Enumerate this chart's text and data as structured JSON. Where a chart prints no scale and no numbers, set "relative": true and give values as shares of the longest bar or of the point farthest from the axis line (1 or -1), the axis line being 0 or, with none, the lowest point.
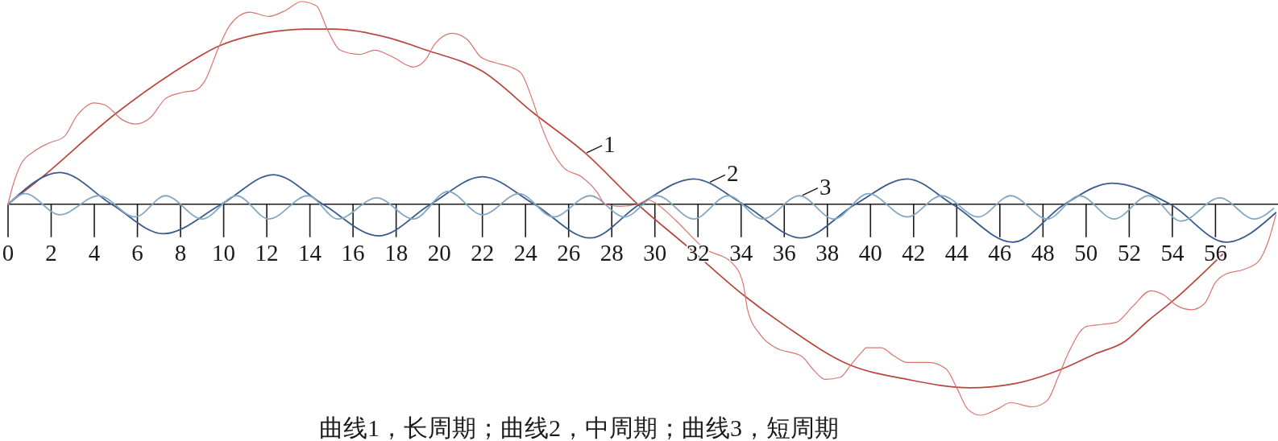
{
  "chart_data": {
    "type": "line",
    "relative": true,
    "line_style": "solid",
    "xlim": [
      0,
      58.9
    ],
    "xticks": [
      0,
      2,
      4,
      6,
      8,
      10,
      12,
      14,
      16,
      18,
      20,
      22,
      24,
      26,
      28,
      30,
      32,
      34,
      36,
      38,
      40,
      42,
      44,
      46,
      48,
      50,
      52,
      54,
      56
    ],
    "annotations": [
      "曲线1，长周期；曲线2，中周期；曲线3，短周期"
    ],
    "series": [
      {
        "name": "1",
        "color": "#b8473f",
        "x": [
          0,
          1.6,
          5.0,
          7.6,
          9.8,
          12.5,
          13.8,
          15.1,
          17.6,
          19.4,
          22.0,
          24.4,
          26.8,
          29.2,
          31.5,
          34.1,
          36.1,
          39.0,
          41.7,
          44.6,
          46.7,
          48.9,
          50.4,
          51.8,
          52.9,
          54.0,
          56.4
        ],
        "values": [
          0,
          0.13,
          0.43,
          0.62,
          0.75,
          0.82,
          0.83,
          0.83,
          0.79,
          0.73,
          0.63,
          0.43,
          0.24,
          0.0,
          -0.2,
          -0.43,
          -0.58,
          -0.76,
          -0.83,
          -0.87,
          -0.85,
          -0.78,
          -0.71,
          -0.65,
          -0.55,
          -0.46,
          -0.23
        ]
      },
      {
        "name": "2",
        "color": "#3a5b8d",
        "x": [
          0,
          2.4,
          4.8,
          7.2,
          9.9,
          12.3,
          14.6,
          17.2,
          19.6,
          22.0,
          24.4,
          27.0,
          29.3,
          31.8,
          34.1,
          36.8,
          39.3,
          41.7,
          43.8,
          46.6,
          49.0,
          51.2,
          53.9,
          56.5,
          58.8
        ],
        "values": [
          0,
          0.15,
          0,
          -0.14,
          0,
          0.14,
          0,
          -0.15,
          0,
          0.13,
          0,
          -0.16,
          0,
          0.12,
          0,
          -0.16,
          0,
          0.12,
          0,
          -0.18,
          0,
          0.1,
          0,
          -0.18,
          -0.04
        ]
      },
      {
        "name": "3",
        "color": "#84a8c3",
        "x": [
          0,
          0.8,
          2.4,
          4.2,
          5.9,
          7.3,
          9.0,
          10.6,
          12.1,
          13.9,
          15.3,
          17.1,
          18.8,
          20.4,
          22.0,
          23.7,
          25.3,
          27.0,
          28.6,
          30.1,
          31.8,
          33.4,
          35.0,
          36.7,
          38.3,
          39.9,
          41.7,
          43.3,
          45.0,
          46.5,
          48.2,
          49.7,
          51.3,
          52.9,
          54.4,
          56.2,
          57.8,
          58.7
        ],
        "values": [
          0,
          0.05,
          -0.05,
          0.04,
          -0.06,
          0.04,
          -0.07,
          0.04,
          -0.07,
          0.04,
          -0.07,
          0.03,
          -0.07,
          0.06,
          -0.05,
          0.05,
          -0.06,
          0.04,
          -0.06,
          0.04,
          -0.07,
          0.04,
          -0.07,
          0.04,
          -0.07,
          0.05,
          -0.06,
          0.04,
          -0.06,
          0.04,
          -0.07,
          0.04,
          -0.07,
          0.04,
          -0.08,
          0.03,
          -0.07,
          -0.02
        ]
      },
      {
        "color": "#d8756f",
        "x": [
          0,
          0.2,
          0.6,
          1.2,
          1.9,
          2.6,
          3.2,
          4.0,
          4.5,
          5.3,
          5.9,
          6.6,
          7.3,
          8.1,
          8.7,
          9.1,
          9.8,
          10.3,
          11.2,
          12.1,
          12.9,
          13.6,
          14.3,
          14.8,
          15.4,
          16.3,
          17.0,
          17.8,
          18.8,
          19.4,
          19.8,
          20.6,
          21.3,
          21.9,
          22.6,
          23.3,
          23.8,
          24.3,
          24.7,
          25.2,
          25.8,
          26.6,
          27.3,
          27.7,
          28.4,
          29.2,
          29.7,
          30.1,
          31.0,
          32.3,
          33.6,
          34.1,
          34.3,
          34.9,
          35.6,
          36.8,
          37.4,
          37.9,
          38.6,
          39.1,
          39.6,
          39.8,
          40.5,
          41.1,
          41.7,
          42.7,
          43.5,
          44.0,
          44.5,
          45.1,
          45.9,
          46.5,
          47.5,
          48.2,
          48.7,
          49.2,
          50.0,
          50.7,
          51.4,
          52.2,
          53.0,
          53.6,
          54.2,
          54.9,
          55.5,
          56.0,
          56.5,
          57.3,
          58.0,
          58.5,
          58.8
        ],
        "values": [
          0,
          0.08,
          0.19,
          0.25,
          0.29,
          0.32,
          0.42,
          0.48,
          0.47,
          0.4,
          0.38,
          0.41,
          0.5,
          0.53,
          0.54,
          0.58,
          0.75,
          0.85,
          0.91,
          0.89,
          0.92,
          0.96,
          0.94,
          0.83,
          0.73,
          0.71,
          0.73,
          0.7,
          0.65,
          0.69,
          0.76,
          0.81,
          0.78,
          0.7,
          0.67,
          0.65,
          0.62,
          0.5,
          0.38,
          0.26,
          0.17,
          0.13,
          0.06,
          0.0,
          -0.01,
          0.0,
          0.02,
          0.0,
          -0.08,
          -0.21,
          -0.28,
          -0.38,
          -0.5,
          -0.62,
          -0.68,
          -0.72,
          -0.79,
          -0.83,
          -0.82,
          -0.76,
          -0.7,
          -0.68,
          -0.68,
          -0.72,
          -0.75,
          -0.75,
          -0.78,
          -0.87,
          -0.97,
          -1.0,
          -0.97,
          -0.94,
          -0.96,
          -0.93,
          -0.82,
          -0.7,
          -0.58,
          -0.57,
          -0.56,
          -0.48,
          -0.41,
          -0.43,
          -0.48,
          -0.5,
          -0.47,
          -0.37,
          -0.33,
          -0.31,
          -0.27,
          -0.16,
          -0.05
        ]
      }
    ]
  }
}
